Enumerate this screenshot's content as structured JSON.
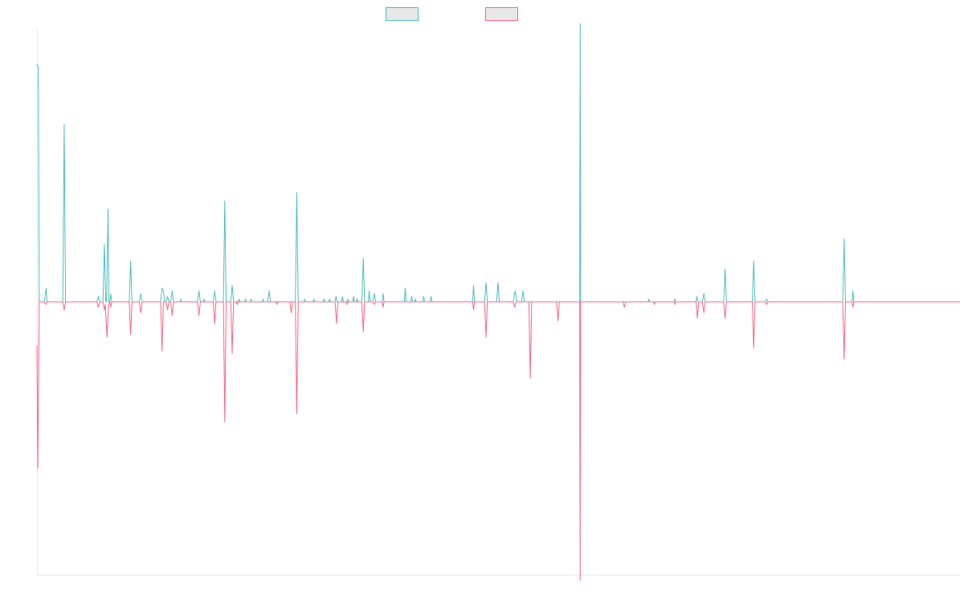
{
  "chart_data": {
    "type": "line",
    "title": "",
    "xlabel": "",
    "ylabel": "",
    "grid": false,
    "legend": {
      "placement": "top-center",
      "entries": [
        {
          "name": "",
          "color": "#4bc0c0",
          "fill": "#e8e8e8"
        },
        {
          "name": "",
          "color": "#ff6384",
          "fill": "#e8e8e8"
        }
      ]
    },
    "xlim": [
      0,
      1000
    ],
    "ylim": [
      -1,
      1
    ],
    "baseline": 0,
    "series": [
      {
        "name": "",
        "color": "#4bc0c0",
        "points": [
          [
            0,
            0.87
          ],
          [
            1.5,
            0.86
          ],
          [
            2.5,
            0
          ],
          [
            8,
            0
          ],
          [
            10,
            0.05
          ],
          [
            11,
            0
          ],
          [
            28,
            0
          ],
          [
            29.5,
            0.65
          ],
          [
            31,
            0
          ],
          [
            65,
            0
          ],
          [
            66.5,
            0.02
          ],
          [
            68,
            0
          ],
          [
            71.5,
            0
          ],
          [
            73,
            0.21
          ],
          [
            74.5,
            0
          ],
          [
            75.5,
            0
          ],
          [
            77,
            0.34
          ],
          [
            78,
            0
          ],
          [
            79,
            0
          ],
          [
            80,
            0.03
          ],
          [
            81,
            0
          ],
          [
            100,
            0
          ],
          [
            101.5,
            0.15
          ],
          [
            103,
            0
          ],
          [
            111,
            0
          ],
          [
            112.5,
            0.03
          ],
          [
            114,
            0
          ],
          [
            134,
            0
          ],
          [
            135.5,
            0.05
          ],
          [
            137,
            0.04
          ],
          [
            138.5,
            0
          ],
          [
            140,
            0
          ],
          [
            141.5,
            0.02
          ],
          [
            143,
            0
          ],
          [
            145,
            0
          ],
          [
            146.5,
            0.04
          ],
          [
            148,
            0
          ],
          [
            155,
            0
          ],
          [
            156,
            0.01
          ],
          [
            157,
            0
          ],
          [
            174,
            0
          ],
          [
            175.5,
            0.04
          ],
          [
            177,
            0
          ],
          [
            180,
            0
          ],
          [
            181,
            0.01
          ],
          [
            182,
            0
          ],
          [
            191,
            0
          ],
          [
            192.5,
            0.04
          ],
          [
            194,
            0
          ],
          [
            202,
            0
          ],
          [
            203.5,
            0.37
          ],
          [
            205,
            0
          ],
          [
            210,
            0
          ],
          [
            211.5,
            0.06
          ],
          [
            213,
            0
          ],
          [
            218,
            0
          ],
          [
            219,
            0.01
          ],
          [
            220,
            0
          ],
          [
            225,
            0
          ],
          [
            226,
            0.01
          ],
          [
            227,
            0
          ],
          [
            231,
            0
          ],
          [
            232,
            0.01
          ],
          [
            233,
            0
          ],
          [
            244,
            0
          ],
          [
            245,
            0.01
          ],
          [
            246,
            0
          ],
          [
            250,
            0
          ],
          [
            251.5,
            0.04
          ],
          [
            253,
            0
          ],
          [
            259,
            0
          ],
          [
            260,
            0
          ],
          [
            280,
            0
          ],
          [
            281.5,
            0.4
          ],
          [
            283,
            0
          ],
          [
            289,
            0
          ],
          [
            290,
            0.01
          ],
          [
            291,
            0
          ],
          [
            299,
            0
          ],
          [
            300,
            0.01
          ],
          [
            301,
            0
          ],
          [
            310,
            0
          ],
          [
            311,
            0.01
          ],
          [
            312,
            0
          ],
          [
            316,
            0
          ],
          [
            317,
            0.01
          ],
          [
            318,
            0
          ],
          [
            323,
            0
          ],
          [
            324,
            0.02
          ],
          [
            325,
            0
          ],
          [
            330,
            0
          ],
          [
            331,
            0.02
          ],
          [
            332,
            0
          ],
          [
            336,
            0
          ],
          [
            337,
            0.01
          ],
          [
            338,
            0
          ],
          [
            342,
            0
          ],
          [
            343,
            0.02
          ],
          [
            344,
            0
          ],
          [
            346,
            0
          ],
          [
            347,
            0.01
          ],
          [
            348,
            0
          ],
          [
            352,
            0
          ],
          [
            353.5,
            0.16
          ],
          [
            355,
            0
          ],
          [
            359,
            0
          ],
          [
            360,
            0.04
          ],
          [
            361,
            0
          ],
          [
            364,
            0
          ],
          [
            365.5,
            0.03
          ],
          [
            367,
            0
          ],
          [
            374,
            0
          ],
          [
            375,
            0.03
          ],
          [
            376,
            0
          ],
          [
            398,
            0
          ],
          [
            399,
            0.05
          ],
          [
            400,
            0
          ],
          [
            405,
            0
          ],
          [
            406,
            0.02
          ],
          [
            407,
            0
          ],
          [
            409,
            0
          ],
          [
            410,
            0.01
          ],
          [
            411,
            0
          ],
          [
            418,
            0
          ],
          [
            419,
            0.02
          ],
          [
            420,
            0
          ],
          [
            426,
            0
          ],
          [
            427,
            0.02
          ],
          [
            428,
            0
          ],
          [
            472,
            0
          ],
          [
            473,
            0.06
          ],
          [
            474,
            0
          ],
          [
            485,
            0
          ],
          [
            486.5,
            0.07
          ],
          [
            488,
            0
          ],
          [
            498,
            0
          ],
          [
            499.5,
            0.07
          ],
          [
            501,
            0
          ],
          [
            516,
            0
          ],
          [
            518,
            0.04
          ],
          [
            520,
            0
          ],
          [
            525,
            0
          ],
          [
            526.5,
            0.04
          ],
          [
            528,
            0
          ],
          [
            557,
            0
          ],
          [
            588,
            0
          ],
          [
            588.5,
            1.02
          ],
          [
            589,
            0
          ],
          [
            631,
            0
          ],
          [
            662,
            0
          ],
          [
            663,
            0.01
          ],
          [
            664,
            0
          ],
          [
            690,
            0
          ],
          [
            691,
            0.01
          ],
          [
            692,
            0
          ],
          [
            714,
            0
          ],
          [
            715,
            0.02
          ],
          [
            716,
            0
          ],
          [
            721,
            0
          ],
          [
            722.5,
            0.03
          ],
          [
            724,
            0
          ],
          [
            744,
            0
          ],
          [
            745.5,
            0.12
          ],
          [
            747,
            0
          ],
          [
            775,
            0
          ],
          [
            776.5,
            0.15
          ],
          [
            778,
            0
          ],
          [
            789,
            0
          ],
          [
            790.5,
            0.01
          ],
          [
            792,
            0
          ],
          [
            873,
            0
          ],
          [
            874.5,
            0.23
          ],
          [
            876,
            0
          ],
          [
            883,
            0
          ],
          [
            884,
            0.04
          ],
          [
            885,
            0
          ],
          [
            1000,
            0
          ]
        ]
      },
      {
        "name": "",
        "color": "#ff6384",
        "points": [
          [
            0,
            -0.16
          ],
          [
            1,
            -0.61
          ],
          [
            2.5,
            0
          ],
          [
            8,
            0
          ],
          [
            10,
            -0.01
          ],
          [
            11,
            0
          ],
          [
            28,
            0
          ],
          [
            29.5,
            -0.03
          ],
          [
            31,
            0
          ],
          [
            65,
            0
          ],
          [
            66.5,
            -0.02
          ],
          [
            68,
            0
          ],
          [
            71.5,
            0
          ],
          [
            73,
            -0.03
          ],
          [
            74,
            -0.01
          ],
          [
            76,
            -0.13
          ],
          [
            77.5,
            -0.01
          ],
          [
            79,
            0
          ],
          [
            80,
            -0.02
          ],
          [
            81,
            0
          ],
          [
            100,
            0
          ],
          [
            101.5,
            -0.12
          ],
          [
            103,
            0
          ],
          [
            111,
            0
          ],
          [
            112.5,
            -0.04
          ],
          [
            114,
            0
          ],
          [
            134,
            0
          ],
          [
            135.5,
            -0.18
          ],
          [
            137,
            0
          ],
          [
            140,
            0
          ],
          [
            141.5,
            -0.03
          ],
          [
            143,
            0
          ],
          [
            145,
            0
          ],
          [
            146.5,
            -0.05
          ],
          [
            148,
            0
          ],
          [
            174,
            0
          ],
          [
            175.5,
            -0.05
          ],
          [
            177,
            0
          ],
          [
            191,
            0
          ],
          [
            192.5,
            -0.08
          ],
          [
            194,
            0
          ],
          [
            202,
            0
          ],
          [
            203.5,
            -0.44
          ],
          [
            205,
            0
          ],
          [
            210,
            0
          ],
          [
            211.5,
            -0.19
          ],
          [
            213,
            0
          ],
          [
            216,
            0
          ],
          [
            217,
            -0.01
          ],
          [
            218,
            0
          ],
          [
            259,
            0
          ],
          [
            260,
            -0.01
          ],
          [
            261,
            0
          ],
          [
            274,
            0
          ],
          [
            275.5,
            -0.04
          ],
          [
            277,
            0
          ],
          [
            280,
            0
          ],
          [
            281.5,
            -0.41
          ],
          [
            283,
            0
          ],
          [
            323,
            0
          ],
          [
            324.5,
            -0.08
          ],
          [
            326,
            0
          ],
          [
            335,
            0
          ],
          [
            336,
            -0.01
          ],
          [
            337,
            0
          ],
          [
            352,
            0
          ],
          [
            353.5,
            -0.11
          ],
          [
            355,
            0
          ],
          [
            364,
            0
          ],
          [
            365.5,
            -0.01
          ],
          [
            367,
            0
          ],
          [
            374,
            0
          ],
          [
            375,
            -0.02
          ],
          [
            376,
            0
          ],
          [
            472,
            0
          ],
          [
            473,
            -0.03
          ],
          [
            474,
            0
          ],
          [
            485,
            0
          ],
          [
            486.5,
            -0.13
          ],
          [
            488,
            0
          ],
          [
            516,
            0
          ],
          [
            517.5,
            -0.02
          ],
          [
            519,
            0
          ],
          [
            533,
            0
          ],
          [
            534.5,
            -0.28
          ],
          [
            536,
            0
          ],
          [
            563,
            0
          ],
          [
            564.5,
            -0.07
          ],
          [
            566,
            0
          ],
          [
            588,
            0
          ],
          [
            588.5,
            -1.02
          ],
          [
            589,
            0
          ],
          [
            635,
            0
          ],
          [
            636.5,
            -0.02
          ],
          [
            638,
            0
          ],
          [
            668,
            0
          ],
          [
            669,
            -0.01
          ],
          [
            670,
            0
          ],
          [
            690,
            0
          ],
          [
            691,
            -0.01
          ],
          [
            692,
            0
          ],
          [
            714,
            0
          ],
          [
            715.5,
            -0.06
          ],
          [
            717,
            0
          ],
          [
            721,
            0
          ],
          [
            722.5,
            -0.04
          ],
          [
            724,
            0
          ],
          [
            744,
            0
          ],
          [
            745.5,
            -0.06
          ],
          [
            747,
            0
          ],
          [
            775,
            0
          ],
          [
            776.5,
            -0.17
          ],
          [
            778,
            0
          ],
          [
            789,
            0
          ],
          [
            790.5,
            -0.01
          ],
          [
            792,
            0
          ],
          [
            873,
            0
          ],
          [
            874.5,
            -0.21
          ],
          [
            876,
            0
          ],
          [
            883,
            0
          ],
          [
            884,
            -0.02
          ],
          [
            885,
            0
          ],
          [
            1000,
            0
          ]
        ]
      }
    ]
  }
}
